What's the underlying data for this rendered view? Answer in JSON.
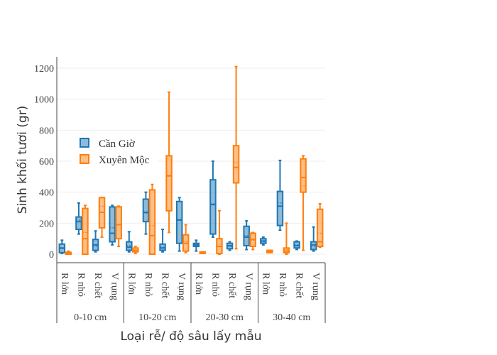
{
  "chart_data": {
    "type": "box",
    "ylabel": "Sinh khối tươi (gr)",
    "xlabel": "Loại rễ/ độ sâu lấy mẫu",
    "ylim": [
      -60,
      1260
    ],
    "yticks": [
      0,
      200,
      400,
      600,
      800,
      1000,
      1200
    ],
    "grid": true,
    "legend_position": "top-left",
    "groups": [
      "0-10 cm",
      "10-20 cm",
      "20-30 cm",
      "30-40 cm"
    ],
    "categories": [
      "R lớn",
      "R nhỏ",
      "R chết",
      "V rụng"
    ],
    "series": [
      {
        "name": "Cần Giờ",
        "color": "#1f77b4",
        "boxes": [
          {
            "min": 5,
            "q1": 10,
            "median": 40,
            "mean": 35,
            "q3": 65,
            "max": 90
          },
          {
            "min": 130,
            "q1": 160,
            "median": 210,
            "mean": 220,
            "q3": 240,
            "max": 330
          },
          {
            "min": 15,
            "q1": 25,
            "median": 60,
            "mean": 50,
            "q3": 95,
            "max": 150
          },
          {
            "min": 60,
            "q1": 80,
            "median": 135,
            "mean": 170,
            "q3": 305,
            "max": 315
          },
          {
            "min": 15,
            "q1": 25,
            "median": 45,
            "mean": 55,
            "q3": 80,
            "max": 145
          },
          {
            "min": 130,
            "q1": 210,
            "median": 270,
            "mean": 265,
            "q3": 355,
            "max": 400
          },
          {
            "min": 15,
            "q1": 25,
            "median": 40,
            "mean": 45,
            "q3": 65,
            "max": 160
          },
          {
            "min": 20,
            "q1": 70,
            "median": 220,
            "mean": 225,
            "q3": 340,
            "max": 365
          },
          {
            "min": 20,
            "q1": 50,
            "median": 60,
            "mean": 65,
            "q3": 70,
            "max": 90
          },
          {
            "min": 110,
            "q1": 130,
            "median": 320,
            "mean": 325,
            "q3": 480,
            "max": 600
          },
          {
            "min": 25,
            "q1": 35,
            "median": 55,
            "mean": 50,
            "q3": 70,
            "max": 80
          },
          {
            "min": 30,
            "q1": 55,
            "median": 110,
            "mean": 120,
            "q3": 180,
            "max": 215
          },
          {
            "min": 60,
            "q1": 70,
            "median": 85,
            "mean": 80,
            "q3": 100,
            "max": 110
          },
          {
            "min": 155,
            "q1": 185,
            "median": 310,
            "mean": 330,
            "q3": 405,
            "max": 605
          },
          {
            "min": 30,
            "q1": 40,
            "median": 55,
            "mean": 60,
            "q3": 80,
            "max": 85
          },
          {
            "min": 20,
            "q1": 30,
            "median": 60,
            "mean": 50,
            "q3": 80,
            "max": 175
          }
        ]
      },
      {
        "name": "Xuyên Mộc",
        "color": "#ff7f0e",
        "boxes": [
          {
            "min": 0,
            "q1": 0,
            "median": 5,
            "mean": 8,
            "q3": 12,
            "max": 20
          },
          {
            "min": 0,
            "q1": 0,
            "median": 100,
            "mean": 140,
            "q3": 295,
            "max": 315
          },
          {
            "min": 110,
            "q1": 170,
            "median": 270,
            "mean": 310,
            "q3": 365,
            "max": 365
          },
          {
            "min": 50,
            "q1": 100,
            "median": 190,
            "mean": 190,
            "q3": 305,
            "max": 310
          },
          {
            "min": 5,
            "q1": 15,
            "median": 25,
            "mean": 25,
            "q3": 40,
            "max": 50
          },
          {
            "min": 0,
            "q1": 0,
            "median": 120,
            "mean": 185,
            "q3": 415,
            "max": 450
          },
          {
            "min": 140,
            "q1": 280,
            "median": 505,
            "mean": 510,
            "q3": 635,
            "max": 1045
          },
          {
            "min": 10,
            "q1": 20,
            "median": 70,
            "mean": 80,
            "q3": 125,
            "max": 190
          },
          {
            "min": 5,
            "q1": 5,
            "median": 10,
            "mean": 10,
            "q3": 15,
            "max": 15
          },
          {
            "min": 0,
            "q1": 5,
            "median": 50,
            "mean": 65,
            "q3": 100,
            "max": 280
          },
          {
            "min": 35,
            "q1": 460,
            "median": 560,
            "mean": 590,
            "q3": 700,
            "max": 1210
          },
          {
            "min": 30,
            "q1": 50,
            "median": 95,
            "mean": 90,
            "q3": 135,
            "max": 140
          },
          {
            "min": 10,
            "q1": 10,
            "median": 15,
            "mean": 20,
            "q3": 25,
            "max": 25
          },
          {
            "min": 0,
            "q1": 10,
            "median": 20,
            "mean": 30,
            "q3": 40,
            "max": 200
          },
          {
            "min": 25,
            "q1": 400,
            "median": 495,
            "mean": 440,
            "q3": 615,
            "max": 635
          },
          {
            "min": 45,
            "q1": 50,
            "median": 80,
            "mean": 135,
            "q3": 290,
            "max": 325
          }
        ]
      }
    ]
  }
}
